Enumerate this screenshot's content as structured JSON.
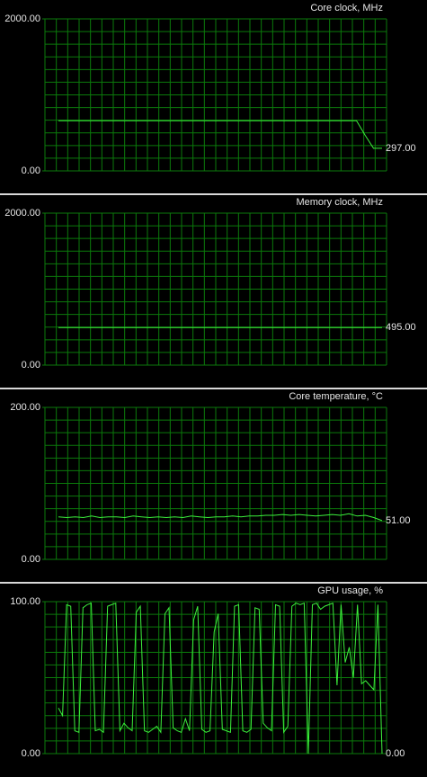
{
  "chart_data": [
    {
      "type": "line",
      "title": "Core clock, MHz",
      "color": "#3cf03c",
      "ylim": [
        0,
        2000
      ],
      "yticks": [
        {
          "value": 0,
          "label": "0.00"
        },
        {
          "value": 2000,
          "label": "2000.00"
        }
      ],
      "grid": {
        "rows": 12,
        "cols": 30
      },
      "values": [
        660,
        660,
        660,
        660,
        660,
        660,
        660,
        660,
        660,
        660,
        660,
        660,
        660,
        660,
        660,
        660,
        660,
        660,
        660,
        660,
        660,
        660,
        660,
        660,
        660,
        660,
        660,
        660,
        660,
        660,
        660,
        660,
        660,
        660,
        660,
        660,
        470,
        297,
        297
      ],
      "current": {
        "value": 297,
        "label": "297.00"
      }
    },
    {
      "type": "line",
      "title": "Memory clock, MHz",
      "color": "#3cf03c",
      "ylim": [
        0,
        2000
      ],
      "yticks": [
        {
          "value": 0,
          "label": "0.00"
        },
        {
          "value": 2000,
          "label": "2000.00"
        }
      ],
      "grid": {
        "rows": 12,
        "cols": 30
      },
      "values": [
        495,
        495,
        495,
        495,
        495,
        495,
        495,
        495,
        495,
        495,
        495,
        495,
        495,
        495,
        495,
        495,
        495,
        495,
        495,
        495
      ],
      "current": {
        "value": 495,
        "label": "495.00"
      }
    },
    {
      "type": "line",
      "title": "Core temperature, °C",
      "color": "#3cf03c",
      "ylim": [
        0,
        200
      ],
      "yticks": [
        {
          "value": 0,
          "label": "0.00"
        },
        {
          "value": 200,
          "label": "200.00"
        }
      ],
      "grid": {
        "rows": 12,
        "cols": 30
      },
      "values": [
        56,
        55,
        56,
        55,
        57,
        55,
        56,
        56,
        55,
        57,
        56,
        55,
        56,
        55,
        56,
        55,
        57,
        56,
        55,
        56,
        56,
        57,
        56,
        57,
        57,
        58,
        58,
        59,
        58,
        59,
        58,
        57,
        58,
        59,
        58,
        60,
        57,
        58,
        55,
        51
      ],
      "current": {
        "value": 51,
        "label": "51.00"
      }
    },
    {
      "type": "line",
      "title": "GPU usage, %",
      "color": "#3cf03c",
      "ylim": [
        0,
        100
      ],
      "yticks": [
        {
          "value": 0,
          "label": "0.00"
        },
        {
          "value": 100,
          "label": "100.00"
        }
      ],
      "grid": {
        "rows": 12,
        "cols": 30
      },
      "values": [
        30,
        25,
        98,
        97,
        15,
        14,
        96,
        98,
        99,
        15,
        16,
        14,
        97,
        98,
        99,
        15,
        20,
        17,
        15,
        93,
        97,
        15,
        14,
        16,
        18,
        14,
        92,
        96,
        17,
        15,
        14,
        23,
        15,
        88,
        97,
        16,
        14,
        15,
        80,
        92,
        16,
        15,
        14,
        97,
        98,
        15,
        14,
        16,
        96,
        95,
        20,
        17,
        15,
        98,
        97,
        14,
        18,
        97,
        99,
        98,
        99,
        0,
        98,
        99,
        95,
        97,
        98,
        99,
        45,
        98,
        60,
        70,
        50,
        98,
        46,
        48,
        45,
        42,
        98,
        0
      ],
      "current": {
        "value": 0,
        "label": "0.00"
      }
    }
  ]
}
